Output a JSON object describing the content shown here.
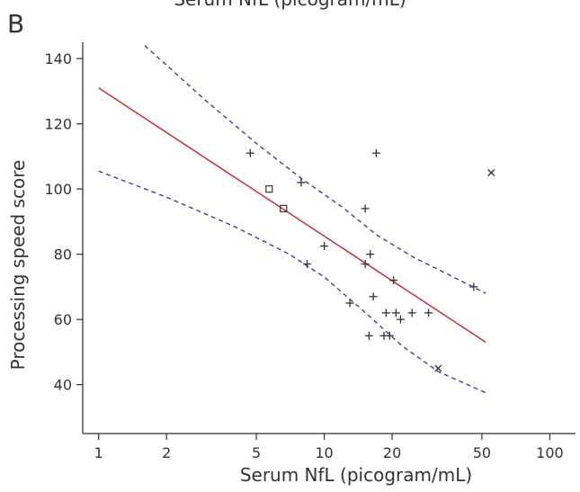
{
  "top_caption": "Serum NfL (picogram/mL)",
  "panel_label": "B",
  "colors": {
    "fit": "#cc2f3a",
    "ci": "#3d3dae",
    "axis": "#333333",
    "marker": "#333333"
  },
  "chart_data": {
    "type": "scatter",
    "title": "",
    "xlabel": "Serum NfL (picogram/mL)",
    "ylabel": "Processing speed score",
    "x_scale": "log",
    "xlim": [
      0.85,
      130
    ],
    "ylim": [
      25,
      145
    ],
    "x_ticks": [
      1,
      2,
      5,
      10,
      20,
      50,
      100
    ],
    "x_tick_labels": [
      "1",
      "2",
      "5",
      "10",
      "20",
      "50",
      "100"
    ],
    "y_ticks": [
      40,
      60,
      80,
      100,
      120,
      140
    ],
    "y_tick_labels": [
      "40",
      "60",
      "80",
      "100",
      "120",
      "140"
    ],
    "grid": false,
    "legend": "none",
    "series": [
      {
        "marker": "plus",
        "points": [
          {
            "x": 4.7,
            "y": 111
          },
          {
            "x": 7.9,
            "y": 102
          },
          {
            "x": 10.0,
            "y": 82.5
          },
          {
            "x": 8.4,
            "y": 77
          },
          {
            "x": 13.0,
            "y": 65
          },
          {
            "x": 15.2,
            "y": 94
          },
          {
            "x": 15.2,
            "y": 77
          },
          {
            "x": 16.0,
            "y": 80
          },
          {
            "x": 17.0,
            "y": 111
          },
          {
            "x": 16.5,
            "y": 67
          },
          {
            "x": 15.8,
            "y": 55
          },
          {
            "x": 18.4,
            "y": 55
          },
          {
            "x": 19.5,
            "y": 55
          },
          {
            "x": 18.8,
            "y": 62
          },
          {
            "x": 20.8,
            "y": 62
          },
          {
            "x": 20.3,
            "y": 72
          },
          {
            "x": 21.8,
            "y": 60
          },
          {
            "x": 24.5,
            "y": 62
          },
          {
            "x": 29.0,
            "y": 62
          },
          {
            "x": 46.0,
            "y": 70
          }
        ]
      },
      {
        "marker": "square",
        "points": [
          {
            "x": 5.7,
            "y": 100
          },
          {
            "x": 6.6,
            "y": 94
          }
        ]
      },
      {
        "marker": "cross",
        "points": [
          {
            "x": 55.0,
            "y": 105
          },
          {
            "x": 32.0,
            "y": 45
          }
        ]
      }
    ],
    "fit_line": {
      "x": [
        1,
        52
      ],
      "y": [
        131,
        53
      ]
    },
    "ci_upper": {
      "x": [
        1.6,
        3,
        5,
        8,
        12,
        17,
        25,
        35,
        52
      ],
      "y": [
        144,
        127,
        114,
        103,
        94.5,
        86,
        79,
        74,
        68
      ]
    },
    "ci_lower": {
      "x": [
        1,
        2,
        4,
        7,
        10,
        15,
        22,
        32,
        52
      ],
      "y": [
        105.5,
        97.5,
        88.5,
        80,
        73,
        62.5,
        52,
        44,
        37.5
      ]
    }
  }
}
